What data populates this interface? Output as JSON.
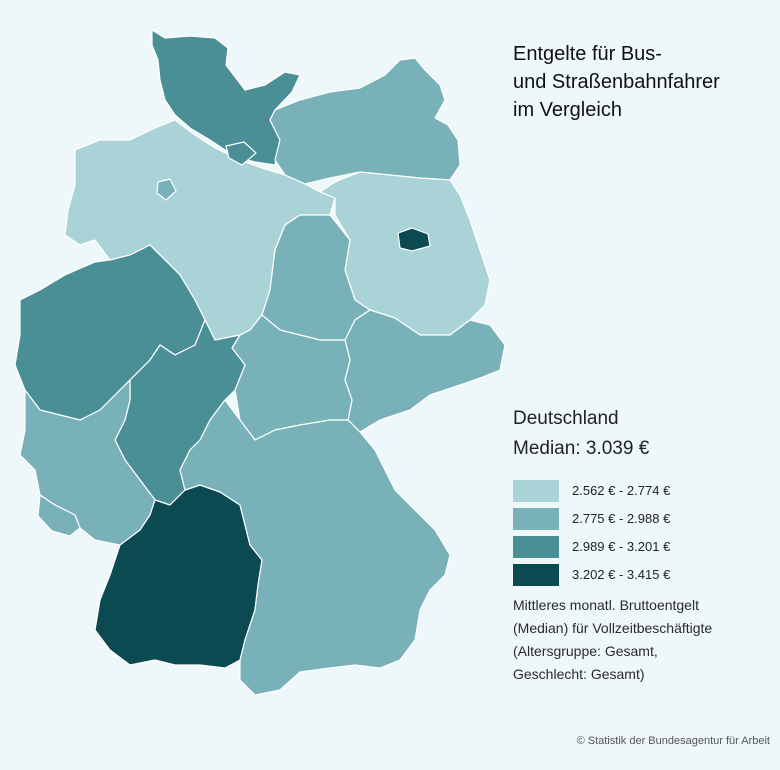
{
  "title_lines": [
    "Entgelte für Bus-",
    "und Straßenbahnfahrer",
    "im Vergleich"
  ],
  "summary": {
    "region": "Deutschland",
    "median": "Median: 3.039 €"
  },
  "legend": {
    "items": [
      {
        "label": "2.562 € - 2.774 €",
        "color": "#a9d3d7"
      },
      {
        "label": "2.775 € - 2.988 €",
        "color": "#78b1b8"
      },
      {
        "label": "2.989 € - 3.201 €",
        "color": "#4a8e96"
      },
      {
        "label": "3.202 € - 3.415 €",
        "color": "#0c4a52"
      }
    ]
  },
  "note_lines": [
    "Mittleres monatl. Bruttoentgelt",
    "(Median) für Vollzeitbeschäftigte",
    "(Altersgruppe: Gesamt,",
    "Geschlecht: Gesamt)"
  ],
  "copyright": "© Statistik der Bundesagentur für Arbeit",
  "colors": {
    "background": "#eef8fa",
    "border": "#ffffff"
  },
  "region_bins": {
    "schleswig-holstein": 2,
    "hamburg": 2,
    "mecklenburg-vorpommern": 1,
    "niedersachsen": 0,
    "bremen": 1,
    "brandenburg": 0,
    "berlin": 3,
    "sachsen-anhalt": 1,
    "sachsen": 1,
    "thueringen": 1,
    "nordrhein-westfalen": 2,
    "hessen": 2,
    "rheinland-pfalz": 1,
    "saarland": 1,
    "baden-wuerttemberg": 3,
    "bayern": 1
  }
}
